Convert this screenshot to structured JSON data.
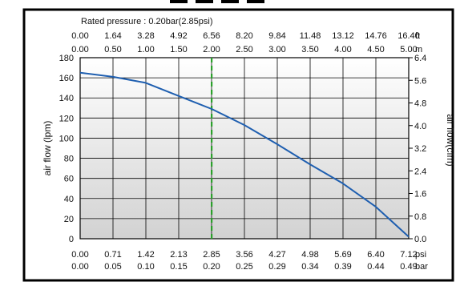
{
  "chart_data": {
    "type": "line",
    "title": "",
    "rated_pressure_label": "Rated pressure : 0.20bar(2.85psi)",
    "ylabel_left": "air flow (lpm)",
    "ylabel_right": "air flow(cfm)",
    "y_ticks_left": [
      "0",
      "20",
      "40",
      "60",
      "80",
      "100",
      "120",
      "140",
      "160",
      "180"
    ],
    "y_ticks_right": [
      "0.0",
      "0.8",
      "1.6",
      "2.4",
      "3.2",
      "4.0",
      "4.8",
      "5.6",
      "6.4"
    ],
    "ylim": [
      0,
      180
    ],
    "x_top_ft": {
      "unit": "ft",
      "ticks": [
        "0.00",
        "1.64",
        "3.28",
        "4.92",
        "6.56",
        "8.20",
        "9.84",
        "11.48",
        "13.12",
        "14.76",
        "16.40"
      ]
    },
    "x_top_m": {
      "unit": "m",
      "ticks": [
        "0.00",
        "0.50",
        "1.00",
        "1.50",
        "2.00",
        "2.50",
        "3.00",
        "3.50",
        "4.00",
        "4.50",
        "5.00"
      ]
    },
    "x_bottom_psi": {
      "unit": "psi",
      "ticks": [
        "0.00",
        "0.71",
        "1.42",
        "2.13",
        "2.85",
        "3.56",
        "4.27",
        "4.98",
        "5.69",
        "6.40",
        "7.12"
      ]
    },
    "x_bottom_bar": {
      "unit": "bar",
      "ticks": [
        "0.00",
        "0.05",
        "0.10",
        "0.15",
        "0.20",
        "0.25",
        "0.29",
        "0.34",
        "0.39",
        "0.44",
        "0.49"
      ]
    },
    "xlim_psi": [
      0,
      7.12
    ],
    "rated_pressure_psi": 2.85,
    "series": [
      {
        "color": "#1f5fb0",
        "x": [
          0.0,
          0.71,
          1.42,
          2.13,
          2.85,
          3.56,
          4.27,
          4.98,
          5.69,
          6.4,
          7.12
        ],
        "y": [
          165,
          161,
          155,
          142,
          129,
          113,
          94,
          74,
          55,
          32,
          2
        ]
      }
    ],
    "rated_line_color": "#2aa02a",
    "grid": true
  }
}
